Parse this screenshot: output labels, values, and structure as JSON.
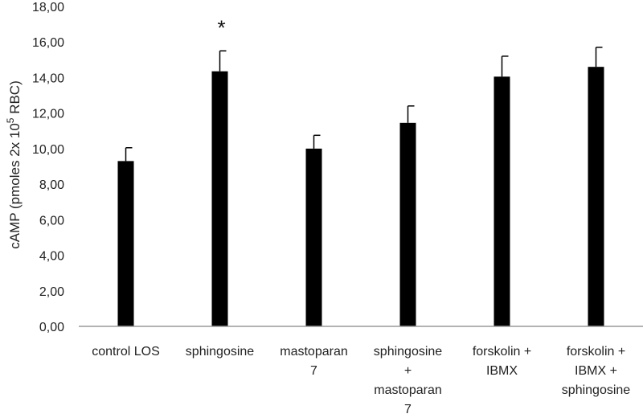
{
  "chart_data": {
    "type": "bar",
    "categories": [
      [
        "control LOS"
      ],
      [
        "sphingosine"
      ],
      [
        "mastoparan",
        "7"
      ],
      [
        "sphingosine",
        "+",
        "mastoparan",
        "7"
      ],
      [
        "forskolin +",
        "IBMX"
      ],
      [
        "forskolin +",
        "IBMX +",
        "sphingosine"
      ]
    ],
    "values": [
      9.3,
      14.35,
      10.0,
      11.45,
      14.05,
      14.6
    ],
    "errors": [
      0.75,
      1.15,
      0.75,
      0.95,
      1.15,
      1.1
    ],
    "ylim": [
      0,
      18
    ],
    "yticks": [
      "0,00",
      "2,00",
      "4,00",
      "6,00",
      "8,00",
      "10,00",
      "12,00",
      "14,00",
      "16,00",
      "18,00"
    ],
    "ylabel_main": "cAMP (pmoles 2x 10",
    "ylabel_sup": "5",
    "ylabel_end": " RBC)",
    "annotations": [
      {
        "category_index": 1,
        "text": "*"
      }
    ],
    "bar_color": "#000000",
    "grid": false
  }
}
